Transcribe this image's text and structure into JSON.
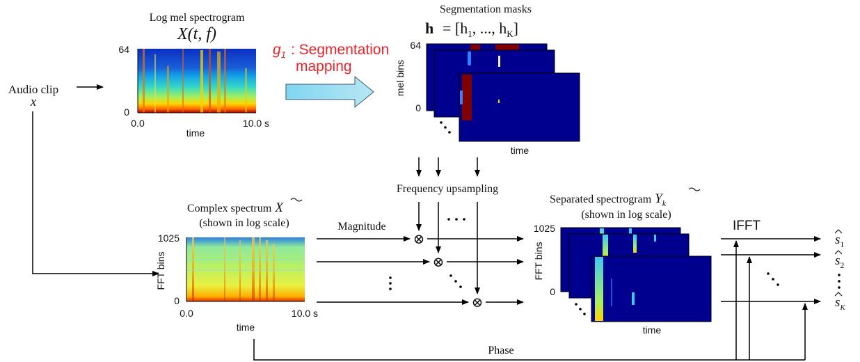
{
  "input": {
    "audio_clip": "Audio clip",
    "x_symbol": "x"
  },
  "log_mel": {
    "title": "Log mel spectrogram",
    "formula": "X(t, f)",
    "y_top": "64",
    "y_bottom": "0",
    "x_left": "0.0",
    "x_right": "10.0 s",
    "x_label": "time"
  },
  "g1": {
    "symbol": "g",
    "subscript": "1",
    "line1": ": Segmentation",
    "line2": "mapping"
  },
  "masks": {
    "title": "Segmentation masks",
    "formula_h": "h",
    "formula_rest": "= [h",
    "formula_sub1": "1",
    "formula_mid": ", ..., h",
    "formula_subK": "K",
    "formula_end": "]",
    "y_label": "mel bins",
    "y_top": "64",
    "y_bottom": "0",
    "x_label": "time"
  },
  "freq_upsampling": "Frequency upsampling",
  "complex": {
    "title": "Complex spectrum",
    "symbol": "X",
    "subtitle": "(shown in log scale)",
    "y_label": "FFT bins",
    "y_top": "1025",
    "y_bottom": "0",
    "x_left": "0.0",
    "x_right": "10.0 s",
    "x_label": "time"
  },
  "magnitude": "Magnitude",
  "multiply_symbol": "⊗",
  "separated": {
    "title": "Separated spectrogram",
    "symbol": "Y",
    "subscript": "k",
    "subtitle": "(shown in log scale)",
    "y_label": "FFT bins",
    "y_top": "1025",
    "y_bottom": "0",
    "x_label": "time"
  },
  "ifft": "IFFT",
  "phase": "Phase",
  "outputs": [
    {
      "symbol": "s",
      "sub": "1"
    },
    {
      "symbol": "s",
      "sub": "2"
    },
    {
      "symbol": "s",
      "sub": "K"
    }
  ],
  "colors": {
    "jet_low": "#00008f",
    "jet_high": "#800000",
    "arrow_fill": "#a9d8ea",
    "red_text": "#e8242b"
  }
}
